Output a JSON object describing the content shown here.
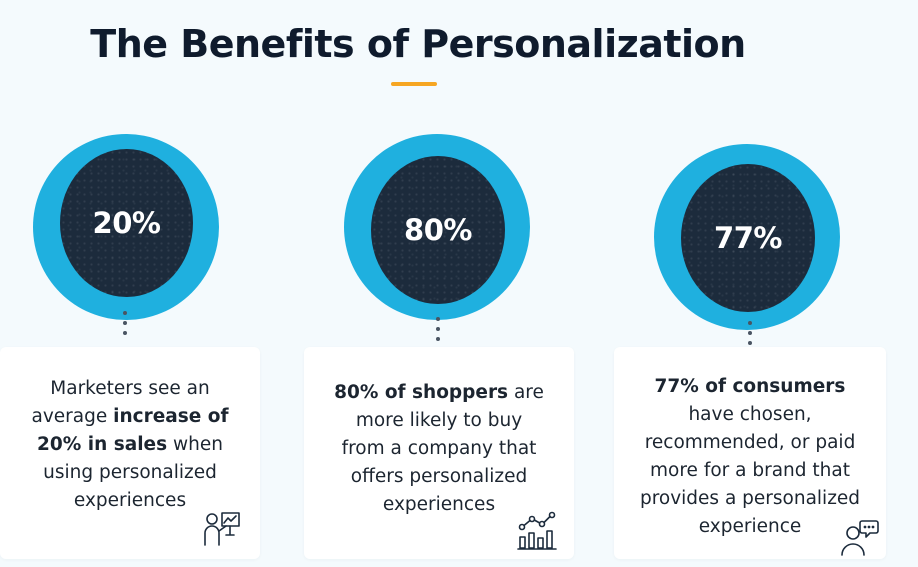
{
  "title": "The Benefits of Personalization",
  "colors": {
    "accent_underline": "#f6a623",
    "outer_circle": "#1fb0df",
    "inner_circle": "#1c2b3c",
    "title_text": "#0f1b2d",
    "body_text": "#1c2530",
    "background": "#f4fafd",
    "card_background": "#ffffff"
  },
  "stats": [
    {
      "value": "20%",
      "text": {
        "l1": "Marketers see an",
        "l2_pre": "average ",
        "l2_bold": "increase of",
        "l3_bold": "20% in sales",
        "l3_post": " when",
        "l4": "using personalized",
        "l5": "experiences"
      },
      "icon": "presenter-chart-icon"
    },
    {
      "value": "80%",
      "text": {
        "l1_bold": "80% of shoppers",
        "l1_post": " are",
        "l2": "more likely to buy",
        "l3": "from a company that",
        "l4": "offers personalized",
        "l5": "experiences"
      },
      "icon": "growth-chart-icon"
    },
    {
      "value": "77%",
      "text": {
        "l1_bold": "77% of consumers",
        "l2": "have chosen,",
        "l3": "recommended, or paid",
        "l4": "more for a brand that",
        "l5": "provides a personalized",
        "l6": "experience"
      },
      "icon": "person-speech-bubble-icon"
    }
  ]
}
